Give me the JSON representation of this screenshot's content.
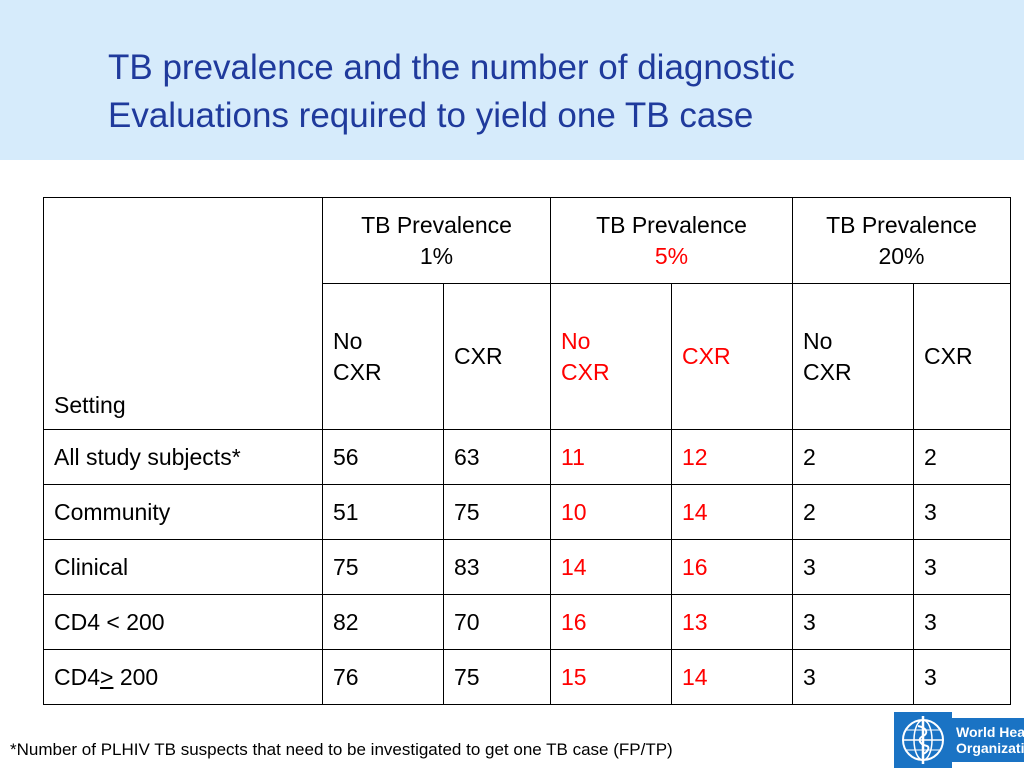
{
  "slide": {
    "title_line1": "TB prevalence and the number of diagnostic",
    "title_line2": "Evaluations required to yield one TB case"
  },
  "table": {
    "group_headers": [
      {
        "line1": "TB Prevalence",
        "line2": "1%",
        "line2_color": "#000000"
      },
      {
        "line1": "TB Prevalence",
        "line2": "5%",
        "line2_color": "#ff0000"
      },
      {
        "line1": "TB Prevalence",
        "line2": "20%",
        "line2_color": "#000000"
      }
    ],
    "setting_header": "Setting",
    "sub_headers": [
      {
        "line1": "No",
        "line2": "CXR"
      },
      {
        "line1": "",
        "line2": "CXR"
      },
      {
        "line1": "No",
        "line2": "CXR"
      },
      {
        "line1": "",
        "line2": "CXR"
      },
      {
        "line1": "No",
        "line2": "CXR"
      },
      {
        "line1": "",
        "line2": "CXR"
      }
    ],
    "highlight_color": "#ff0000",
    "rows": [
      {
        "setting": "All study subjects*",
        "values": [
          "56",
          "63",
          "11",
          "12",
          "2",
          "2"
        ]
      },
      {
        "setting": "Community",
        "values": [
          "51",
          "75",
          "10",
          "14",
          "2",
          "3"
        ]
      },
      {
        "setting": "Clinical",
        "values": [
          "75",
          "83",
          "14",
          "16",
          "3",
          "3"
        ]
      },
      {
        "setting": "CD4 < 200",
        "values": [
          "82",
          "70",
          "16",
          "13",
          "3",
          "3"
        ]
      },
      {
        "setting_prefix": "CD4",
        "setting_symbol": ">",
        "setting_suffix": " 200",
        "values": [
          "76",
          "75",
          "15",
          "14",
          "3",
          "3"
        ]
      }
    ]
  },
  "footnote": "*Number of PLHIV TB suspects that need to be investigated to get one TB case (FP/TP)",
  "logo": {
    "line1": "World Health",
    "line2": "Organization",
    "icon": "who-emblem-icon",
    "color": "#1a73c4"
  }
}
